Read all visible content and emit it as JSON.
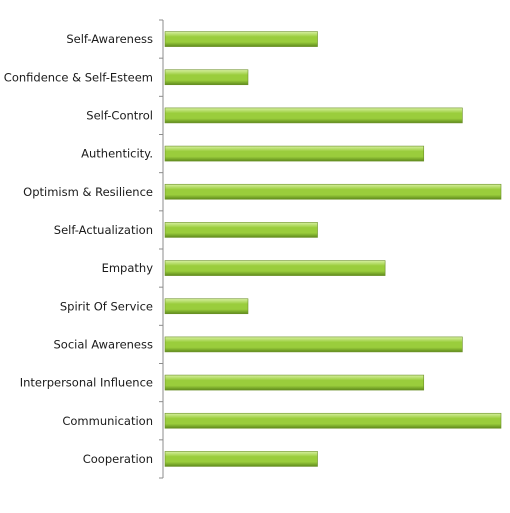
{
  "chart_data": {
    "type": "bar",
    "orientation": "horizontal",
    "categories": [
      "Self-Awareness",
      "Confidence & Self-Esteem",
      "Self-Control",
      "Authenticity.",
      "Optimism & Resilience",
      "Self-Actualization",
      "Empathy",
      "Spirit Of Service",
      "Social Awareness",
      "Interpersonal  Influence",
      "Communication",
      "Cooperation"
    ],
    "values": [
      4,
      2.2,
      7.75,
      6.75,
      8.75,
      4,
      5.75,
      2.2,
      7.75,
      6.75,
      8.75,
      4
    ],
    "xlim": [
      0,
      8.75
    ],
    "title": "",
    "xlabel": "",
    "ylabel": "",
    "grid": false,
    "legend": "none",
    "colors": {
      "bar_fill": "#9acd3c",
      "bar_highlight": "#d7f0a0",
      "bar_shadow": "#5f8a1c",
      "bar_outline": "#6b8f28",
      "axis": "#8c8c8c"
    }
  }
}
